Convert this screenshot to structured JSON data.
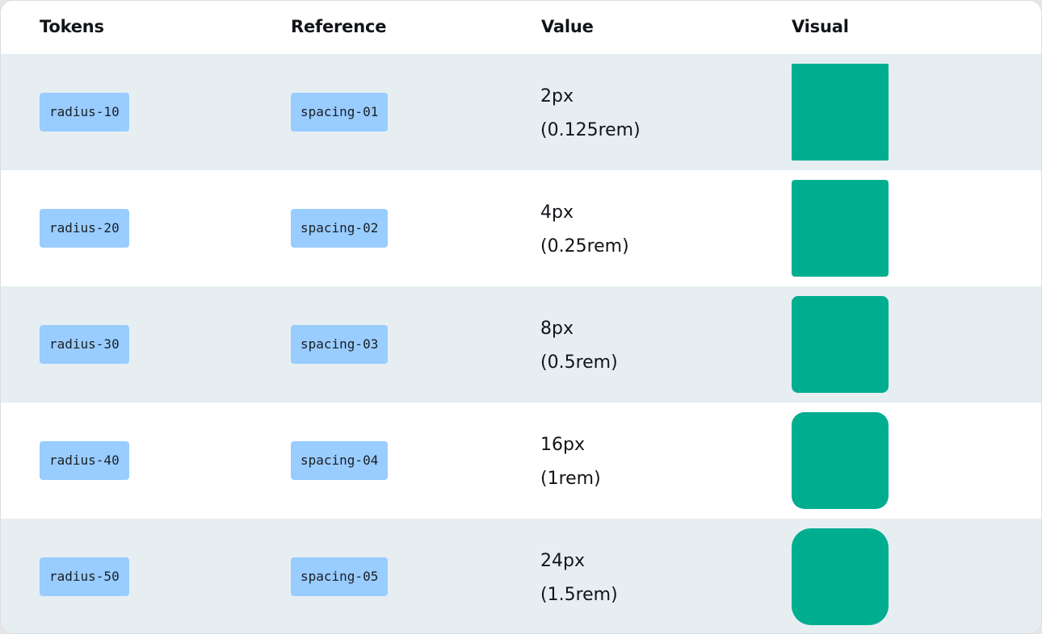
{
  "table": {
    "headers": {
      "tokens": "Tokens",
      "reference": "Reference",
      "value": "Value",
      "visual": "Visual"
    },
    "rows": [
      {
        "token": "radius-10",
        "reference": "spacing-01",
        "value_px": "2px",
        "value_rem": "(0.125rem)"
      },
      {
        "token": "radius-20",
        "reference": "spacing-02",
        "value_px": "4px",
        "value_rem": "(0.25rem)"
      },
      {
        "token": "radius-30",
        "reference": "spacing-03",
        "value_px": "8px",
        "value_rem": "(0.5rem)"
      },
      {
        "token": "radius-40",
        "reference": "spacing-04",
        "value_px": "16px",
        "value_rem": "(1rem)"
      },
      {
        "token": "radius-50",
        "reference": "spacing-05",
        "value_px": "24px",
        "value_rem": "(1.5rem)"
      }
    ]
  },
  "colors": {
    "chip_background": "#99ccff",
    "swatch": "#00ae8f",
    "shaded_row": "#e6eef2"
  }
}
